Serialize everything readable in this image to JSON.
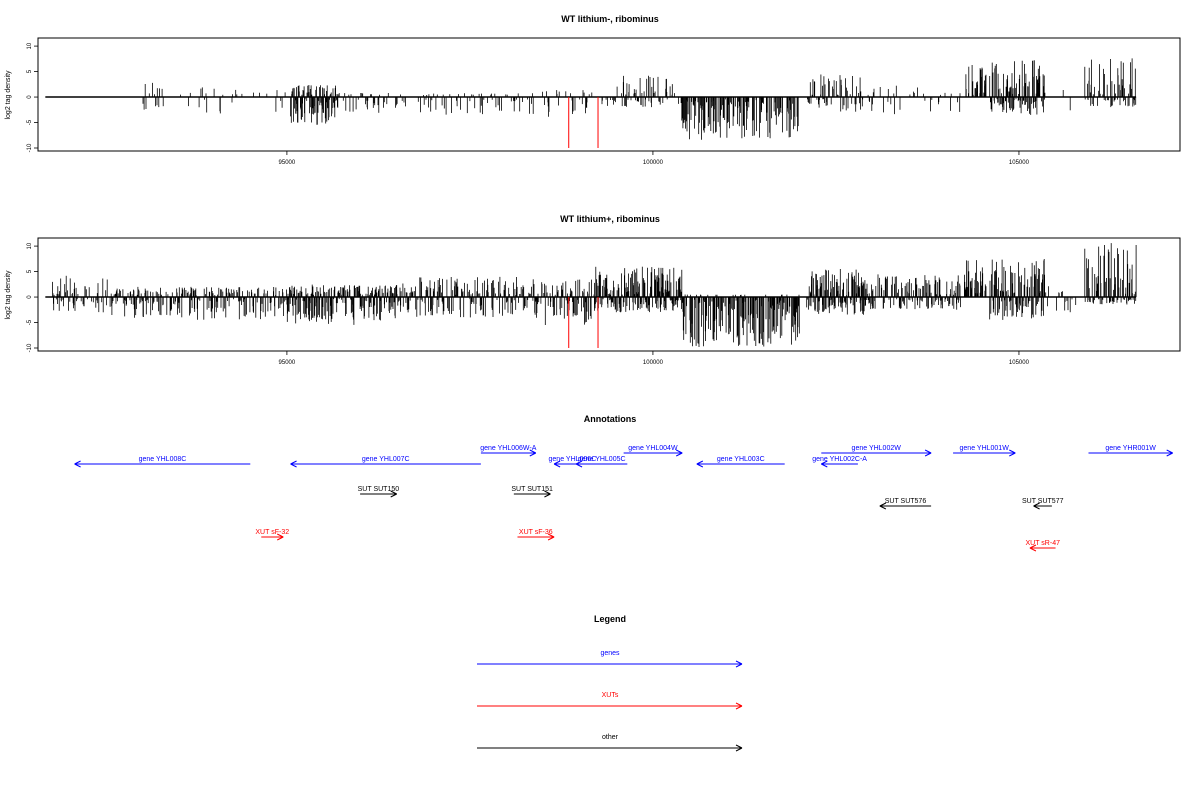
{
  "chart_data": [
    {
      "type": "bar",
      "title": "WT lithium-, ribominus",
      "ylabel": "log2 tag density",
      "xlabel": "",
      "xlim": [
        91600,
        107200
      ],
      "ylim": [
        -10,
        11
      ],
      "x_ticks": [
        "95000",
        "100000",
        "105000"
      ],
      "y_ticks": [
        "-10",
        "-5",
        "0",
        "5",
        "10"
      ],
      "baseline": [
        91700,
        106600
      ],
      "highlight_positions": [
        98850,
        99250
      ],
      "highlight_value": -10,
      "highlight_color": "#ff0000",
      "bar_color": "#000000",
      "regions": [
        {
          "from": 93000,
          "to": 94100,
          "density": 0.18,
          "min": -3.5,
          "max": 2.8
        },
        {
          "from": 94100,
          "to": 95000,
          "density": 0.12,
          "min": -3.0,
          "max": 1.5
        },
        {
          "from": 95050,
          "to": 95700,
          "density": 0.95,
          "min": -5.5,
          "max": 2.4
        },
        {
          "from": 95700,
          "to": 98400,
          "density": 0.3,
          "min": -3.5,
          "max": 0.8
        },
        {
          "from": 98400,
          "to": 99200,
          "density": 0.2,
          "min": -4.0,
          "max": 1.5
        },
        {
          "from": 99300,
          "to": 100300,
          "density": 0.45,
          "min": -2.0,
          "max": 4.5
        },
        {
          "from": 100350,
          "to": 102000,
          "density": 1.0,
          "min": -8.5,
          "max": 0.0
        },
        {
          "from": 102100,
          "to": 103000,
          "density": 0.5,
          "min": -3.0,
          "max": 4.5
        },
        {
          "from": 103000,
          "to": 104200,
          "density": 0.15,
          "min": -4.0,
          "max": 2.5
        },
        {
          "from": 104250,
          "to": 104550,
          "density": 1.0,
          "min": 0.0,
          "max": 7.0
        },
        {
          "from": 104600,
          "to": 105350,
          "density": 0.85,
          "min": -3.5,
          "max": 7.5
        },
        {
          "from": 105350,
          "to": 105800,
          "density": 0.1,
          "min": -3.0,
          "max": 1.5
        },
        {
          "from": 105900,
          "to": 106600,
          "density": 0.5,
          "min": -2.0,
          "max": 8.5
        }
      ]
    },
    {
      "type": "bar",
      "title": "WT lithium+, ribominus",
      "ylabel": "log2 tag density",
      "xlabel": "",
      "xlim": [
        91600,
        107200
      ],
      "ylim": [
        -10,
        11
      ],
      "x_ticks": [
        "95000",
        "100000",
        "105000"
      ],
      "y_ticks": [
        "-10",
        "-5",
        "0",
        "5",
        "10"
      ],
      "baseline": [
        91700,
        106600
      ],
      "highlight_positions": [
        98850,
        99250
      ],
      "highlight_value": -10,
      "highlight_color": "#ff0000",
      "bar_color": "#000000",
      "regions": [
        {
          "from": 91800,
          "to": 92600,
          "density": 0.35,
          "min": -3.0,
          "max": 4.2
        },
        {
          "from": 92600,
          "to": 95000,
          "density": 0.6,
          "min": -4.5,
          "max": 2.0
        },
        {
          "from": 95000,
          "to": 96500,
          "density": 0.9,
          "min": -5.5,
          "max": 2.5
        },
        {
          "from": 96500,
          "to": 98400,
          "density": 0.6,
          "min": -4.0,
          "max": 4.0
        },
        {
          "from": 98400,
          "to": 99200,
          "density": 0.6,
          "min": -5.5,
          "max": 3.5
        },
        {
          "from": 99200,
          "to": 100400,
          "density": 0.9,
          "min": -3.0,
          "max": 6.0
        },
        {
          "from": 100400,
          "to": 102000,
          "density": 1.0,
          "min": -10.0,
          "max": 0.5
        },
        {
          "from": 102100,
          "to": 103000,
          "density": 0.95,
          "min": -3.5,
          "max": 5.5
        },
        {
          "from": 103000,
          "to": 104200,
          "density": 0.7,
          "min": -2.5,
          "max": 4.5
        },
        {
          "from": 104250,
          "to": 104550,
          "density": 1.0,
          "min": 0.0,
          "max": 7.5
        },
        {
          "from": 104600,
          "to": 105350,
          "density": 0.85,
          "min": -4.5,
          "max": 7.5
        },
        {
          "from": 105350,
          "to": 105800,
          "density": 0.2,
          "min": -3.0,
          "max": 2.5
        },
        {
          "from": 105900,
          "to": 106600,
          "density": 0.7,
          "min": -1.5,
          "max": 11.0
        }
      ]
    }
  ],
  "annotations": {
    "title": "Annotations",
    "xlim": [
      91600,
      107200
    ],
    "items": [
      {
        "label": "gene YHL008C",
        "color": "#0000ff",
        "from": 94500,
        "to": 92100,
        "row": 1
      },
      {
        "label": "gene YHL007C",
        "color": "#0000ff",
        "from": 97650,
        "to": 95050,
        "row": 1
      },
      {
        "label": "gene YHL006W-A",
        "color": "#0000ff",
        "from": 97650,
        "to": 98400,
        "row": 0
      },
      {
        "label": "gene YHL006C",
        "color": "#0000ff",
        "from": 99150,
        "to": 98650,
        "row": 1
      },
      {
        "label": "gene YHL005C",
        "color": "#0000ff",
        "from": 99650,
        "to": 98950,
        "row": 1
      },
      {
        "label": "gene YHL004W",
        "color": "#0000ff",
        "from": 99600,
        "to": 100400,
        "row": 0
      },
      {
        "label": "gene YHL003C",
        "color": "#0000ff",
        "from": 101800,
        "to": 100600,
        "row": 1
      },
      {
        "label": "gene YHL002W",
        "color": "#0000ff",
        "from": 102300,
        "to": 103800,
        "row": 0
      },
      {
        "label": "gene YHL002C-A",
        "color": "#0000ff",
        "from": 102800,
        "to": 102300,
        "row": 1
      },
      {
        "label": "gene YHL001W",
        "color": "#0000ff",
        "from": 104100,
        "to": 104950,
        "row": 0
      },
      {
        "label": "gene YHR001W",
        "color": "#0000ff",
        "from": 105950,
        "to": 107100,
        "row": 0
      },
      {
        "label": "SUT SUT150",
        "color": "#000000",
        "from": 96000,
        "to": 96500,
        "row": 2
      },
      {
        "label": "SUT SUT151",
        "color": "#000000",
        "from": 98100,
        "to": 98600,
        "row": 2
      },
      {
        "label": "SUT SUT576",
        "color": "#000000",
        "from": 103800,
        "to": 103100,
        "row": 3
      },
      {
        "label": "SUT SUT577",
        "color": "#000000",
        "from": 105450,
        "to": 105200,
        "row": 3
      },
      {
        "label": "XUT sF-32",
        "color": "#ff0000",
        "from": 94650,
        "to": 94950,
        "row": 4
      },
      {
        "label": "XUT sF-36",
        "color": "#ff0000",
        "from": 98150,
        "to": 98650,
        "row": 4
      },
      {
        "label": "XUT sR-47",
        "color": "#ff0000",
        "from": 105500,
        "to": 105150,
        "row": 5
      }
    ]
  },
  "legend": {
    "title": "Legend",
    "items": [
      {
        "label": "genes",
        "color": "#0000ff"
      },
      {
        "label": "XUTs",
        "color": "#ff0000"
      },
      {
        "label": "other",
        "color": "#000000"
      }
    ]
  }
}
